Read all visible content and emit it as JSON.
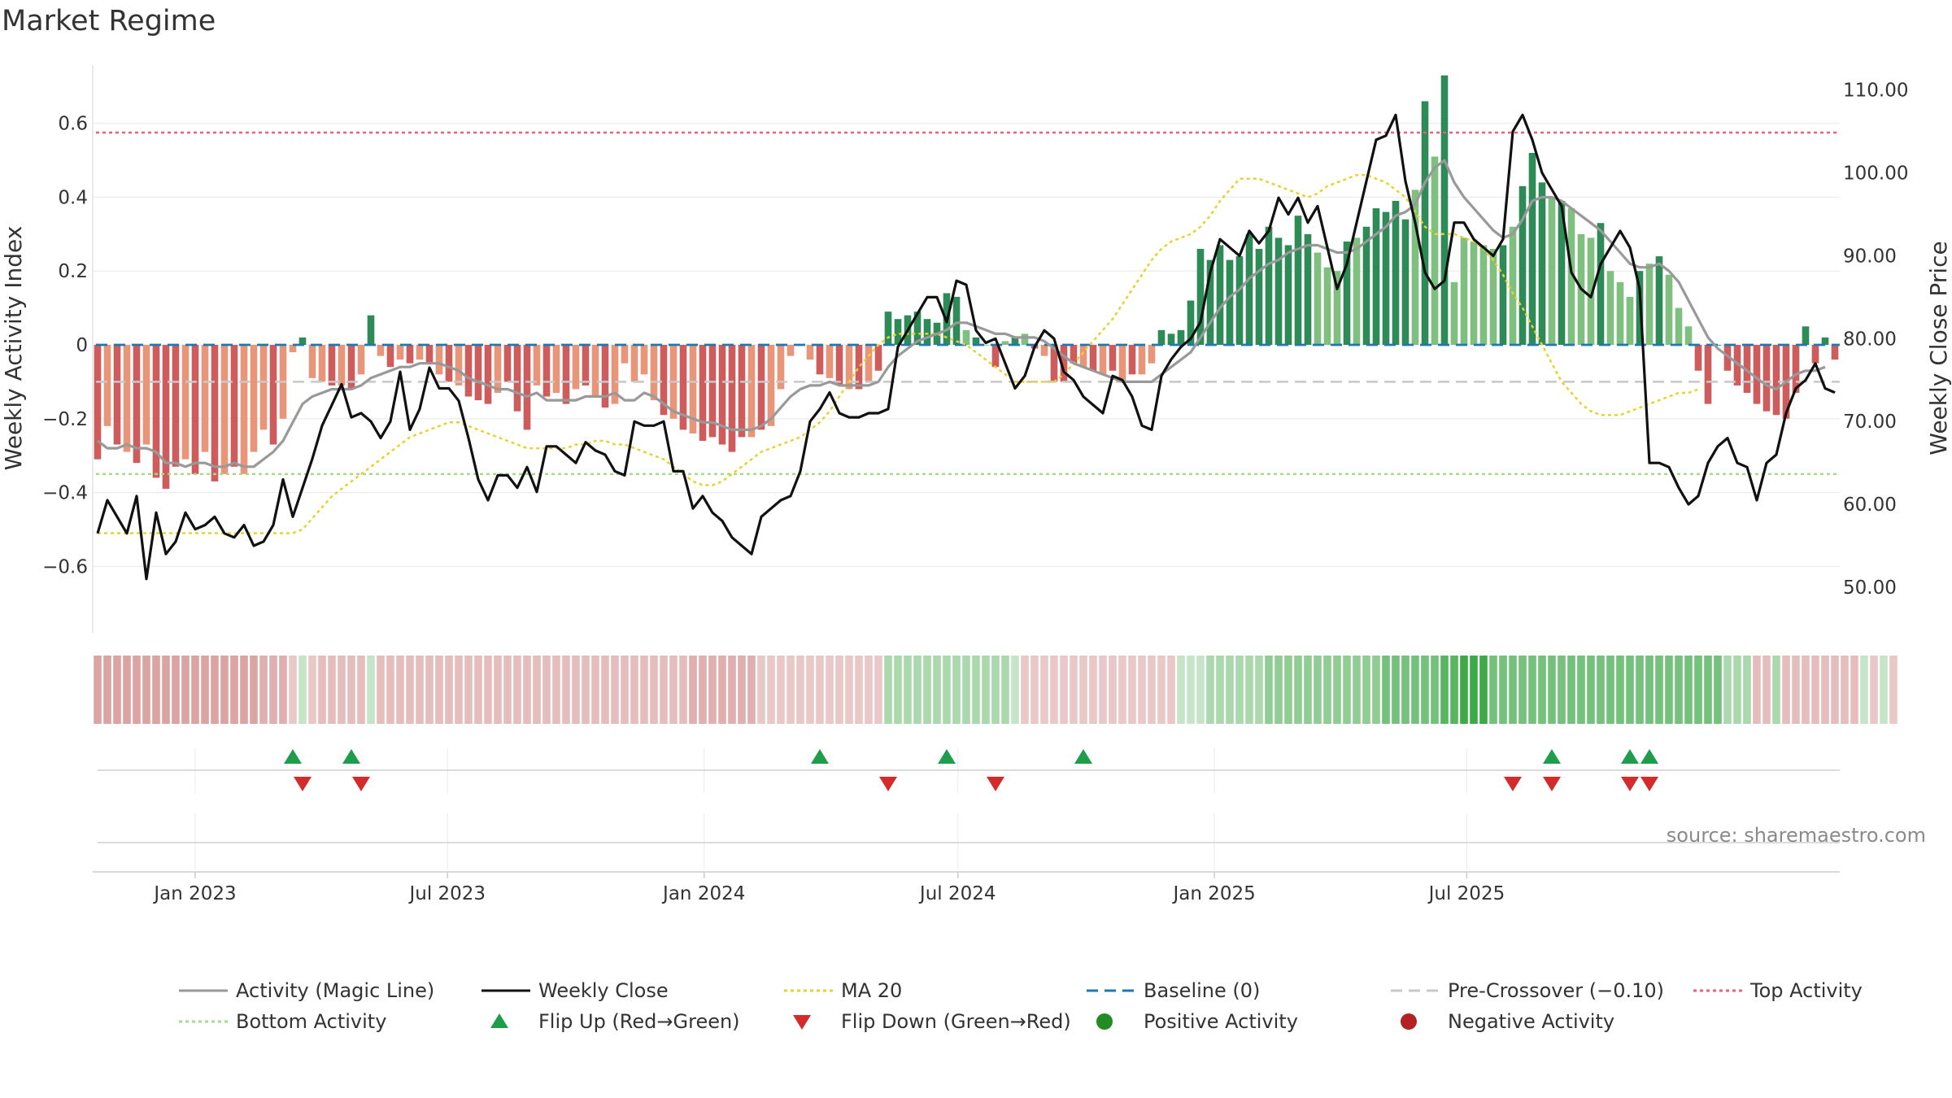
{
  "title": "Market Regime",
  "source": "source: sharemaestro.com",
  "colors": {
    "green_strong": "#2e8b57",
    "green_light": "#7fbf7f",
    "red_strong": "#cd5c5c",
    "red_light": "#e8967a",
    "magic_line": "#999999",
    "close_line": "#111111",
    "ma20": "#e6d230",
    "baseline": "#1f77b4",
    "pre_crossover": "#c8c8c8",
    "top_activity": "#e8607a",
    "bottom_activity": "#a8d888",
    "flip_up": "#1e9e4a",
    "flip_down": "#d42c2c",
    "positive_dot": "#228b22",
    "negative_dot": "#b22222"
  },
  "chart_data": {
    "type": "bar",
    "title": "Market Regime",
    "x_start": "2022-10-23",
    "x_tick_labels": [
      "Jan 2023",
      "Jul 2023",
      "Jan 2024",
      "Jul 2024",
      "Jan 2025",
      "Jul 2025"
    ],
    "x_tick_dates": [
      "2023-01-01",
      "2023-07-01",
      "2024-01-01",
      "2024-07-01",
      "2025-01-01",
      "2025-07-01"
    ],
    "y_left": {
      "label": "Weekly Activity Index",
      "ylim": [
        -0.78,
        0.78
      ],
      "ticks": [
        -0.6,
        -0.4,
        -0.2,
        0,
        0.2,
        0.4,
        0.6
      ],
      "tick_labels": [
        "−0.6",
        "−0.4",
        "−0.2",
        "0",
        "0.2",
        "0.4",
        "0.6"
      ]
    },
    "y_right": {
      "label": "Weekly Close Price",
      "ylim": [
        44.5,
        114.0
      ],
      "ticks": [
        50,
        60,
        70,
        80,
        90,
        100,
        110
      ],
      "tick_labels": [
        "50.00",
        "60.00",
        "70.00",
        "80.00",
        "90.00",
        "100.00",
        "110.00"
      ]
    },
    "levels": {
      "baseline": 0,
      "pre_crossover": -0.1,
      "top_activity": 0.575,
      "bottom_activity": -0.35
    },
    "activity": [
      -0.31,
      -0.22,
      -0.27,
      -0.29,
      -0.32,
      -0.27,
      -0.36,
      -0.39,
      -0.33,
      -0.31,
      -0.35,
      -0.29,
      -0.37,
      -0.35,
      -0.33,
      -0.35,
      -0.29,
      -0.23,
      -0.27,
      -0.2,
      -0.02,
      0.02,
      -0.09,
      -0.1,
      -0.11,
      -0.11,
      -0.12,
      -0.08,
      0.08,
      -0.03,
      -0.06,
      -0.04,
      -0.05,
      -0.04,
      -0.05,
      -0.08,
      -0.1,
      -0.11,
      -0.14,
      -0.15,
      -0.16,
      -0.13,
      -0.1,
      -0.18,
      -0.23,
      -0.11,
      -0.14,
      -0.13,
      -0.16,
      -0.12,
      -0.11,
      -0.14,
      -0.17,
      -0.16,
      -0.05,
      -0.1,
      -0.08,
      -0.15,
      -0.19,
      -0.2,
      -0.23,
      -0.24,
      -0.26,
      -0.25,
      -0.27,
      -0.29,
      -0.25,
      -0.25,
      -0.23,
      -0.22,
      -0.12,
      -0.03,
      0,
      -0.04,
      -0.08,
      -0.09,
      -0.11,
      -0.12,
      -0.12,
      -0.1,
      -0.07,
      0.09,
      0.07,
      0.08,
      0.09,
      0.07,
      0.06,
      0.14,
      0.13,
      0.04,
      0.02,
      0,
      -0.06,
      0.01,
      0.02,
      0.03,
      -0.01,
      -0.03,
      -0.1,
      -0.1,
      -0.05,
      -0.06,
      -0.07,
      -0.08,
      -0.07,
      -0.1,
      -0.08,
      -0.08,
      -0.05,
      0.04,
      0.03,
      0.04,
      0.12,
      0.26,
      0.23,
      0.27,
      0.23,
      0.24,
      0.3,
      0.26,
      0.32,
      0.29,
      0.27,
      0.35,
      0.3,
      0.25,
      0.21,
      0.2,
      0.28,
      0.29,
      0.32,
      0.37,
      0.36,
      0.39,
      0.34,
      0.42,
      0.66,
      0.51,
      0.73,
      0.17,
      0.29,
      0.28,
      0.27,
      0.26,
      0.27,
      0.32,
      0.43,
      0.52,
      0.44,
      0.4,
      0.39,
      0.37,
      0.3,
      0.29,
      0.33,
      0.2,
      0.17,
      0.13,
      0.2,
      0.22,
      0.24,
      0.19,
      0.1,
      0.05,
      -0.07,
      -0.16,
      0,
      -0.07,
      -0.11,
      -0.13,
      -0.16,
      -0.18,
      -0.19,
      -0.2,
      -0.13,
      0.05,
      -0.05,
      0.02,
      -0.04
    ],
    "magic_line": [
      -0.26,
      -0.28,
      -0.28,
      -0.27,
      -0.28,
      -0.28,
      -0.29,
      -0.32,
      -0.32,
      -0.33,
      -0.32,
      -0.32,
      -0.33,
      -0.33,
      -0.32,
      -0.33,
      -0.33,
      -0.31,
      -0.29,
      -0.26,
      -0.21,
      -0.16,
      -0.14,
      -0.13,
      -0.12,
      -0.12,
      -0.12,
      -0.11,
      -0.09,
      -0.08,
      -0.07,
      -0.06,
      -0.06,
      -0.05,
      -0.05,
      -0.05,
      -0.06,
      -0.07,
      -0.09,
      -0.1,
      -0.11,
      -0.12,
      -0.12,
      -0.13,
      -0.14,
      -0.13,
      -0.15,
      -0.15,
      -0.15,
      -0.15,
      -0.14,
      -0.14,
      -0.14,
      -0.13,
      -0.15,
      -0.15,
      -0.13,
      -0.14,
      -0.16,
      -0.18,
      -0.19,
      -0.2,
      -0.21,
      -0.21,
      -0.22,
      -0.23,
      -0.23,
      -0.23,
      -0.22,
      -0.2,
      -0.17,
      -0.14,
      -0.12,
      -0.11,
      -0.11,
      -0.1,
      -0.11,
      -0.11,
      -0.11,
      -0.11,
      -0.1,
      -0.06,
      -0.03,
      -0.01,
      0.01,
      0.02,
      0.03,
      0.04,
      0.06,
      0.06,
      0.05,
      0.04,
      0.03,
      0.03,
      0.02,
      0.02,
      0.02,
      0.01,
      -0.01,
      -0.03,
      -0.05,
      -0.06,
      -0.07,
      -0.08,
      -0.09,
      -0.1,
      -0.1,
      -0.1,
      -0.1,
      -0.08,
      -0.06,
      -0.04,
      -0.02,
      0.02,
      0.06,
      0.1,
      0.13,
      0.15,
      0.18,
      0.2,
      0.22,
      0.23,
      0.25,
      0.26,
      0.27,
      0.27,
      0.26,
      0.25,
      0.25,
      0.26,
      0.28,
      0.3,
      0.32,
      0.35,
      0.36,
      0.38,
      0.44,
      0.48,
      0.5,
      0.44,
      0.4,
      0.37,
      0.34,
      0.31,
      0.29,
      0.3,
      0.34,
      0.39,
      0.4,
      0.4,
      0.39,
      0.37,
      0.35,
      0.33,
      0.31,
      0.28,
      0.25,
      0.22,
      0.21,
      0.21,
      0.22,
      0.2,
      0.17,
      0.12,
      0.07,
      0.02,
      -0.01,
      -0.03,
      -0.05,
      -0.07,
      -0.09,
      -0.11,
      -0.12,
      -0.1,
      -0.08,
      -0.07,
      -0.07,
      -0.06
    ],
    "ma20": [
      -0.51,
      -0.51,
      -0.51,
      -0.51,
      -0.51,
      -0.51,
      -0.51,
      -0.51,
      -0.51,
      -0.51,
      -0.51,
      -0.51,
      -0.51,
      -0.51,
      -0.51,
      -0.51,
      -0.51,
      -0.51,
      -0.51,
      -0.51,
      -0.51,
      -0.5,
      -0.47,
      -0.44,
      -0.41,
      -0.39,
      -0.37,
      -0.35,
      -0.33,
      -0.31,
      -0.29,
      -0.27,
      -0.25,
      -0.24,
      -0.23,
      -0.22,
      -0.21,
      -0.21,
      -0.22,
      -0.23,
      -0.24,
      -0.25,
      -0.26,
      -0.27,
      -0.28,
      -0.28,
      -0.28,
      -0.28,
      -0.28,
      -0.27,
      -0.27,
      -0.26,
      -0.26,
      -0.27,
      -0.27,
      -0.28,
      -0.29,
      -0.3,
      -0.31,
      -0.33,
      -0.35,
      -0.37,
      -0.38,
      -0.38,
      -0.37,
      -0.35,
      -0.33,
      -0.31,
      -0.29,
      -0.28,
      -0.27,
      -0.26,
      -0.25,
      -0.23,
      -0.21,
      -0.18,
      -0.14,
      -0.1,
      -0.06,
      -0.03,
      0,
      0.02,
      0.03,
      0.03,
      0.03,
      0.03,
      0.03,
      0.02,
      0.01,
      0,
      -0.02,
      -0.04,
      -0.06,
      -0.08,
      -0.1,
      -0.1,
      -0.1,
      -0.1,
      -0.1,
      -0.08,
      -0.05,
      -0.02,
      0.01,
      0.04,
      0.07,
      0.11,
      0.15,
      0.19,
      0.23,
      0.26,
      0.28,
      0.29,
      0.3,
      0.32,
      0.35,
      0.39,
      0.42,
      0.45,
      0.45,
      0.45,
      0.44,
      0.43,
      0.42,
      0.41,
      0.4,
      0.41,
      0.43,
      0.44,
      0.45,
      0.46,
      0.46,
      0.45,
      0.44,
      0.42,
      0.4,
      0.36,
      0.32,
      0.3,
      0.3,
      0.3,
      0.29,
      0.28,
      0.26,
      0.23,
      0.19,
      0.14,
      0.1,
      0.05,
      0,
      -0.05,
      -0.1,
      -0.13,
      -0.16,
      -0.18,
      -0.19,
      -0.19,
      -0.19,
      -0.18,
      -0.17,
      -0.16,
      -0.15,
      -0.14,
      -0.13,
      -0.13,
      -0.12
    ],
    "close": [
      56.5,
      60.5,
      58.5,
      56.5,
      61,
      51,
      59,
      54,
      55.5,
      59,
      57,
      57.5,
      58.5,
      56.5,
      56,
      57.5,
      55,
      55.5,
      57.5,
      63,
      58.5,
      62,
      65.5,
      69.5,
      72,
      74.5,
      70.5,
      71,
      70,
      68,
      70,
      76,
      69,
      71.5,
      76.5,
      74,
      74,
      72.5,
      68,
      63,
      60.5,
      63.5,
      63.5,
      62,
      64.5,
      61.5,
      67,
      67,
      66,
      65,
      67.5,
      66.5,
      66,
      64,
      63.5,
      70,
      69.5,
      69.5,
      70,
      64,
      64,
      59.5,
      61,
      59,
      58,
      56,
      55,
      54,
      58.5,
      59.5,
      60.5,
      61,
      64,
      70,
      71.5,
      73.5,
      71,
      70.5,
      70.5,
      71,
      71,
      71.5,
      79,
      81,
      83,
      85,
      85,
      82,
      87,
      86.5,
      81,
      79.5,
      80,
      77,
      74,
      75.5,
      79,
      81,
      80,
      76,
      75,
      73,
      72,
      71,
      75.5,
      75,
      73,
      69.5,
      69,
      75.5,
      77.5,
      79,
      80,
      82,
      88,
      92,
      91,
      90,
      93,
      91.5,
      93,
      97,
      95,
      97,
      94,
      96,
      91,
      86,
      89,
      94,
      99,
      104,
      104.5,
      107,
      99,
      94,
      88,
      86,
      87,
      94,
      94,
      92,
      91,
      90,
      92,
      105,
      107,
      104,
      100,
      98,
      96,
      88,
      86,
      85,
      89,
      91,
      93,
      91,
      86,
      65,
      65,
      64.5,
      62,
      60,
      61,
      65,
      67,
      68,
      65,
      64.5,
      60.5,
      65,
      66,
      71,
      74,
      75,
      77,
      74,
      73.5
    ],
    "regime_strip": [
      -5,
      -5,
      -5,
      -5,
      -5,
      -5,
      -5,
      -5,
      -5,
      -5,
      -5,
      -5,
      -5,
      -5,
      -5,
      -5,
      -5,
      -4,
      -4,
      -4,
      -2,
      1,
      -2,
      -3,
      -3,
      -3,
      -3,
      -3,
      1,
      -3,
      -3,
      -3,
      -3,
      -3,
      -3,
      -3,
      -3,
      -3,
      -3,
      -3,
      -3,
      -3,
      -3,
      -3,
      -3,
      -3,
      -3,
      -3,
      -3,
      -3,
      -3,
      -3,
      -3,
      -3,
      -3,
      -3,
      -3,
      -3,
      -3,
      -3,
      -3,
      -4,
      -4,
      -4,
      -4,
      -4,
      -4,
      -4,
      -2,
      -2,
      -2,
      -2,
      -2,
      -2,
      -2,
      -2,
      -2,
      -2,
      -2,
      -2,
      -2,
      2,
      2,
      2,
      2,
      2,
      2,
      2,
      2,
      2,
      2,
      2,
      2,
      2,
      1,
      -2,
      -2,
      -2,
      -2,
      -2,
      -2,
      -2,
      -2,
      -2,
      -2,
      -2,
      -2,
      -2,
      -2,
      -2,
      -2,
      1,
      1,
      1,
      2,
      2,
      2,
      2,
      2,
      2,
      3,
      3,
      3,
      3,
      3,
      3,
      3,
      3,
      3,
      3,
      3,
      3,
      4,
      4,
      4,
      4,
      4,
      4,
      5,
      5,
      6,
      6,
      6,
      4,
      4,
      4,
      4,
      4,
      4,
      4,
      4,
      4,
      4,
      4,
      4,
      4,
      4,
      4,
      4,
      4,
      4,
      4,
      4,
      4,
      4,
      4,
      4,
      2,
      2,
      2,
      -3,
      -3,
      2,
      -3,
      -3,
      -3,
      -3,
      -3,
      -3,
      -3,
      -3,
      1,
      -2,
      1,
      -2
    ],
    "flip_up_weeks": [
      20,
      26,
      74,
      87,
      101,
      149,
      157,
      159
    ],
    "flip_down_weeks": [
      21,
      27,
      81,
      92,
      145,
      149,
      157,
      159
    ],
    "legend": [
      {
        "label": "Activity (Magic Line)",
        "marker": "line",
        "color": "#999999",
        "dash": ""
      },
      {
        "label": "Weekly Close",
        "marker": "line",
        "color": "#111111",
        "dash": ""
      },
      {
        "label": "MA 20",
        "marker": "line",
        "color": "#e6d230",
        "dash": "4 4"
      },
      {
        "label": "Baseline (0)",
        "marker": "line",
        "color": "#1f77b4",
        "dash": "14 8"
      },
      {
        "label": "Pre-Crossover (−0.10)",
        "marker": "line",
        "color": "#c8c8c8",
        "dash": "14 8"
      },
      {
        "label": "Top Activity",
        "marker": "line",
        "color": "#e8607a",
        "dash": "4 4"
      },
      {
        "label": "Bottom Activity",
        "marker": "line",
        "color": "#a8d888",
        "dash": "4 4"
      },
      {
        "label": "Flip Up (Red→Green)",
        "marker": "tri-up",
        "color": "#1e9e4a"
      },
      {
        "label": "Flip Down (Green→Red)",
        "marker": "tri-down",
        "color": "#d42c2c"
      },
      {
        "label": "Positive Activity",
        "marker": "dot",
        "color": "#228b22"
      },
      {
        "label": "Negative Activity",
        "marker": "dot",
        "color": "#b22222"
      }
    ]
  }
}
